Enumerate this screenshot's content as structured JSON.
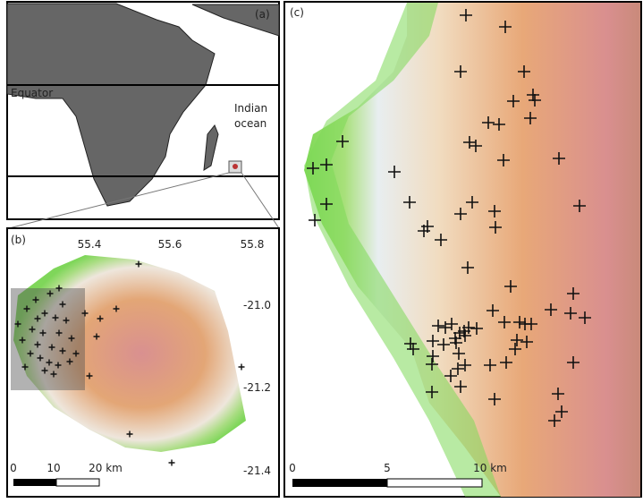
{
  "panels": [
    {
      "label": "(a)",
      "annotations": [
        "Equator",
        "Indian",
        "ocean"
      ]
    },
    {
      "label": "(b)",
      "x_ticks": [
        "55.4",
        "55.6",
        "55.8"
      ],
      "y_ticks": [
        "-21.0",
        "-21.2",
        "-21.4"
      ],
      "scale_bar": [
        "0",
        "10",
        "20 km"
      ]
    },
    {
      "label": "(c)",
      "scale_bar": [
        "0",
        "5",
        "10 km"
      ]
    }
  ]
}
